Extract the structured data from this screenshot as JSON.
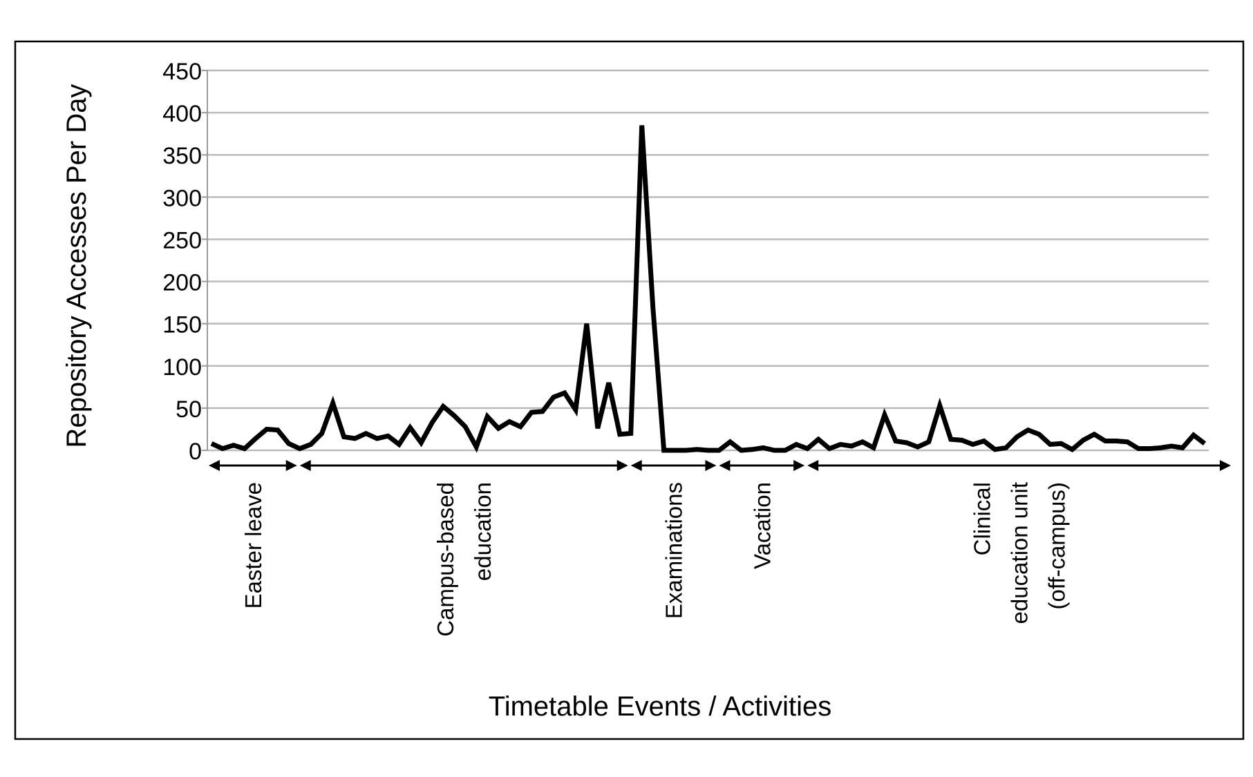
{
  "chart_data": {
    "type": "line",
    "title": "",
    "xlabel": "Timetable Events / Activities",
    "ylabel": "Repository Accesses Per Day",
    "ylim": [
      0,
      450
    ],
    "yticks": [
      "0",
      "50",
      "100",
      "150",
      "200",
      "250",
      "300",
      "350",
      "400",
      "450"
    ],
    "grid": true,
    "series": [
      {
        "name": "Repository Accesses Per Day",
        "color": "#000000",
        "values": [
          8,
          2,
          6,
          2,
          14,
          25,
          24,
          8,
          2,
          7,
          20,
          56,
          16,
          14,
          20,
          14,
          17,
          7,
          27,
          9,
          33,
          52,
          41,
          28,
          4,
          40,
          26,
          34,
          28,
          45,
          46,
          63,
          68,
          48,
          150,
          26,
          80,
          19,
          20,
          385,
          170,
          0,
          0,
          0,
          1,
          0,
          0,
          10,
          0,
          1,
          3,
          0,
          0,
          7,
          2,
          13,
          2,
          7,
          5,
          10,
          3,
          42,
          11,
          9,
          4,
          10,
          53,
          13,
          12,
          7,
          11,
          1,
          3,
          16,
          24,
          19,
          7,
          8,
          1,
          12,
          19,
          11,
          11,
          10,
          2,
          2,
          3,
          5,
          3,
          18,
          8
        ]
      }
    ],
    "periods": [
      {
        "lines": [
          "Easter leave"
        ],
        "start": 0,
        "end": 8
      },
      {
        "lines": [
          "Campus-based",
          "education"
        ],
        "start": 8,
        "end": 38
      },
      {
        "lines": [
          "Examinations"
        ],
        "start": 38,
        "end": 46
      },
      {
        "lines": [
          "Vacation"
        ],
        "start": 46,
        "end": 54
      },
      {
        "lines": [
          "Clinical",
          "education unit",
          "(off-campus)"
        ],
        "start": 54,
        "end": 92
      }
    ]
  }
}
